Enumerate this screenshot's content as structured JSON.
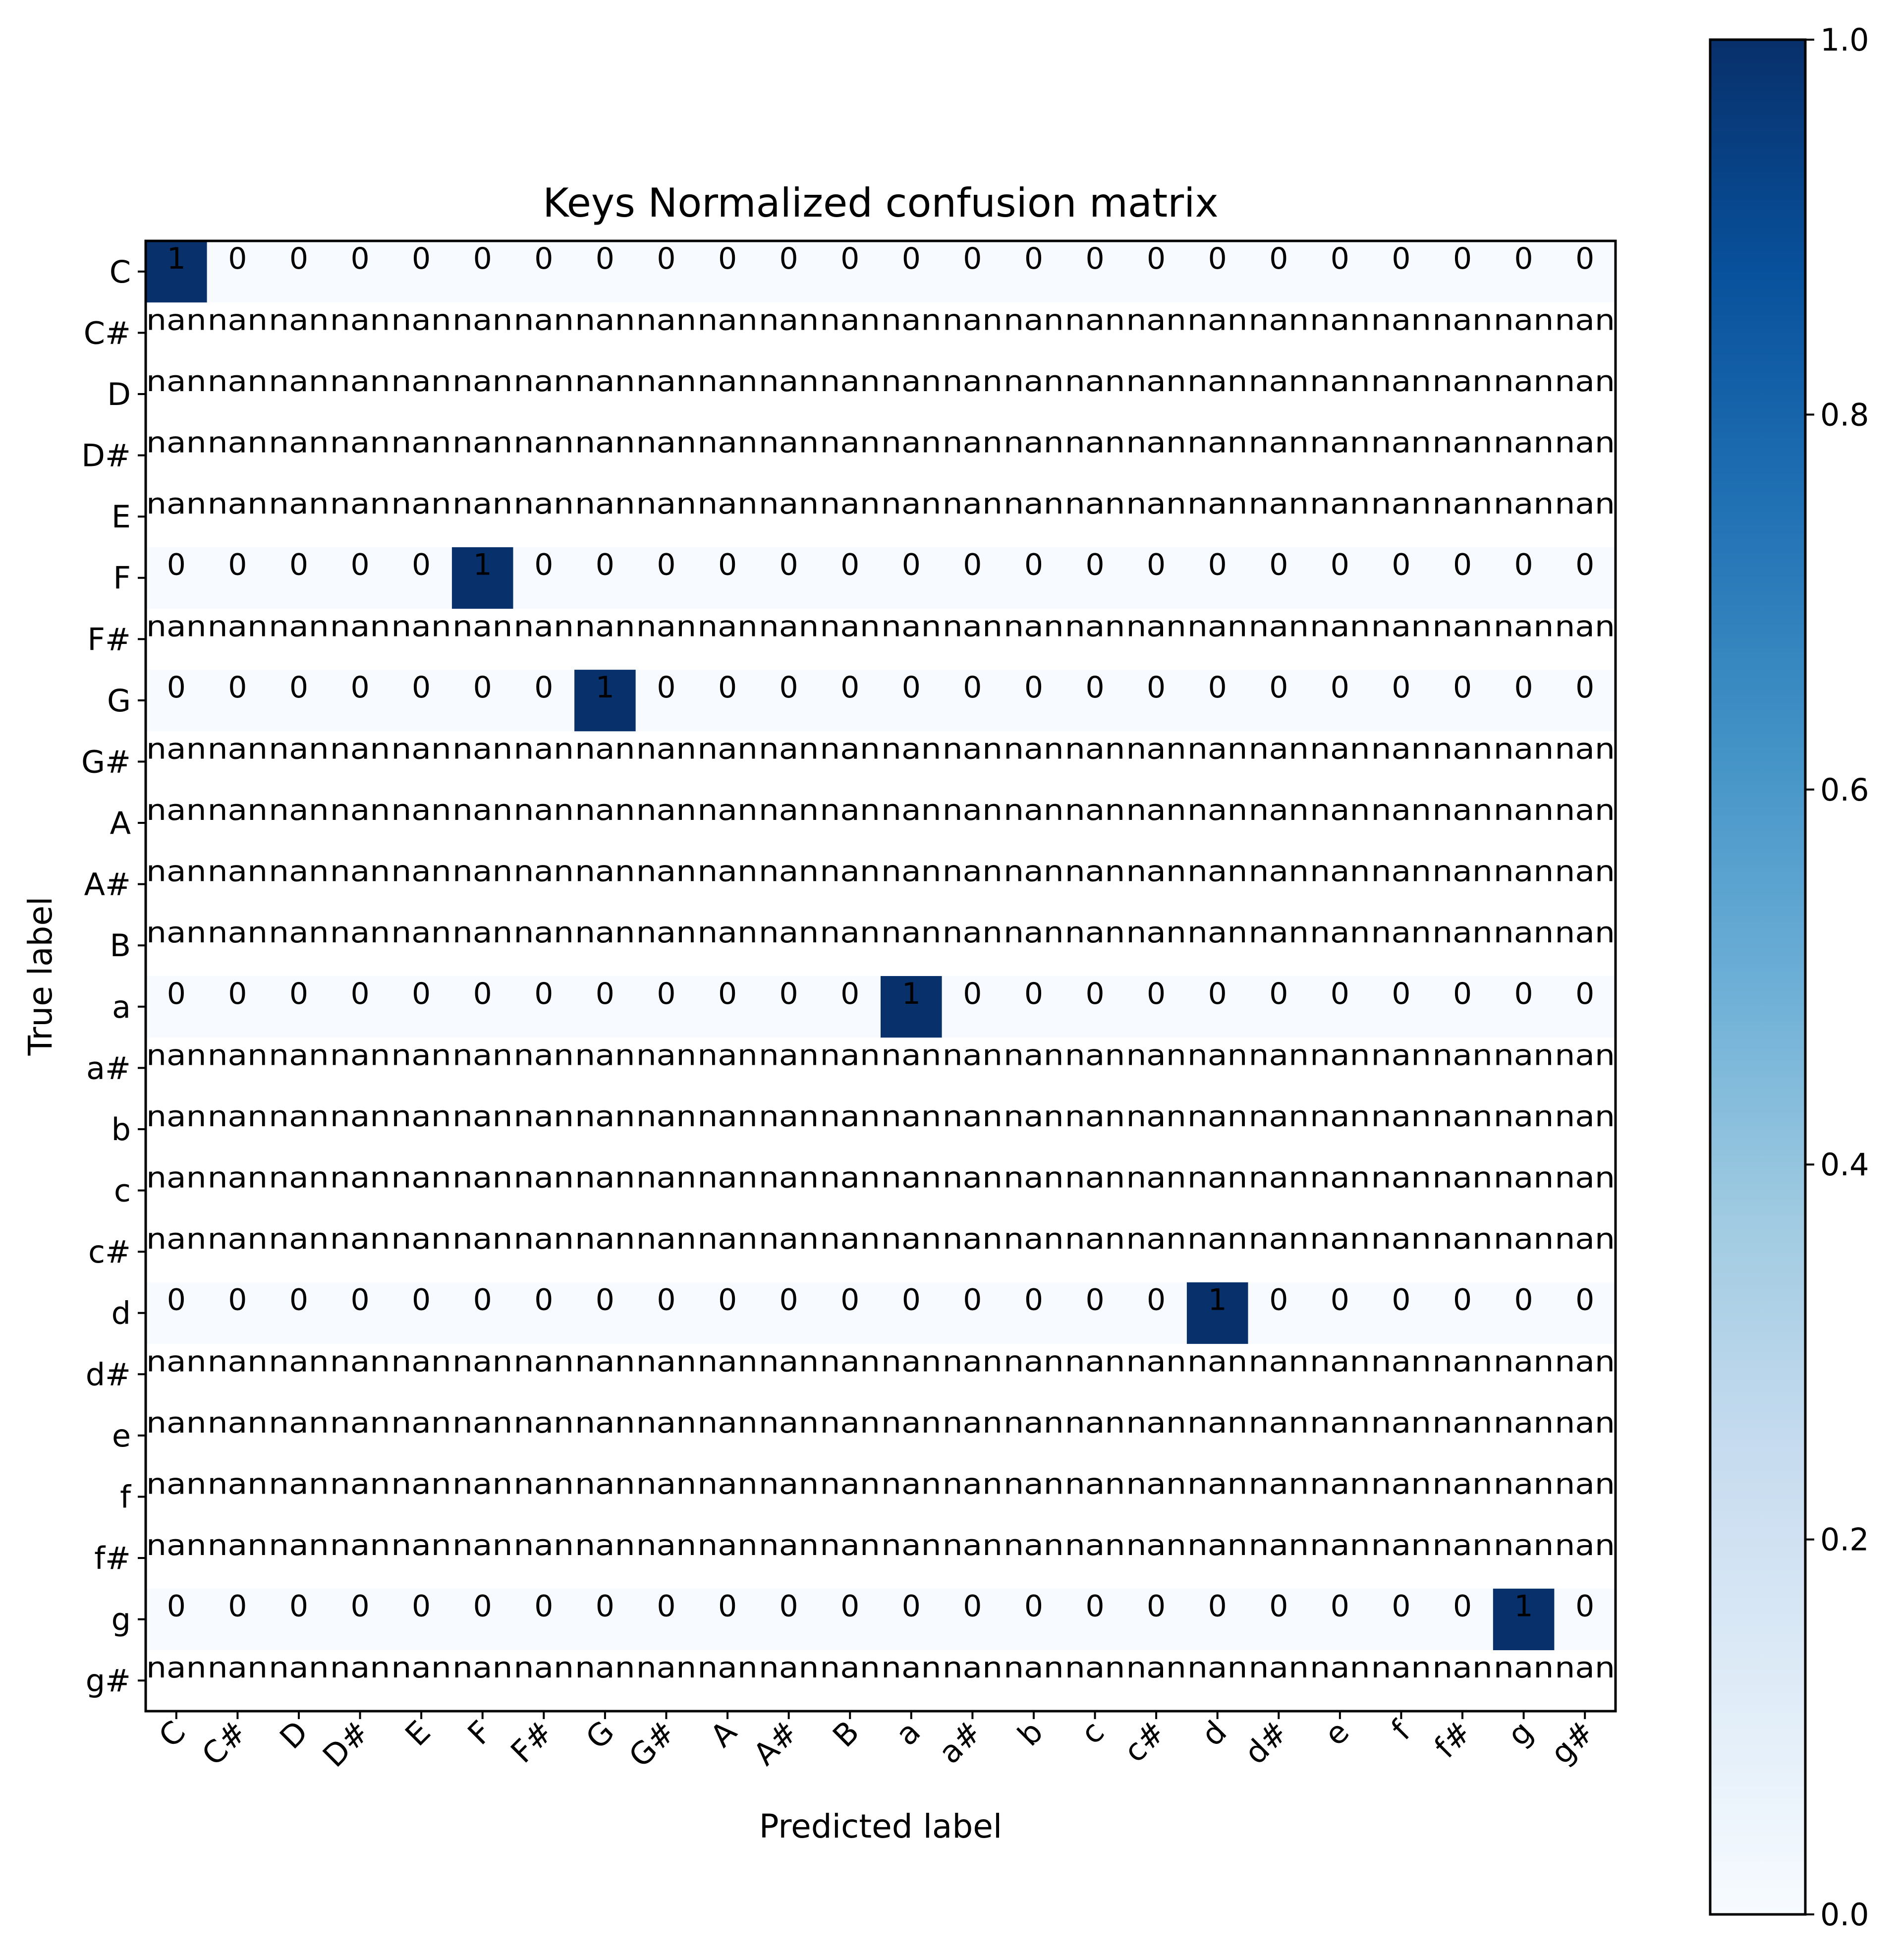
{
  "chart_data": {
    "type": "heatmap",
    "title": "Keys Normalized confusion matrix",
    "xlabel": "Predicted label",
    "ylabel": "True label",
    "row_labels": [
      "C",
      "C#",
      "D",
      "D#",
      "E",
      "F",
      "F#",
      "G",
      "G#",
      "A",
      "A#",
      "B",
      "a",
      "a#",
      "b",
      "c",
      "c#",
      "d",
      "d#",
      "e",
      "f",
      "f#",
      "g",
      "g#"
    ],
    "col_labels": [
      "C",
      "C#",
      "D",
      "D#",
      "E",
      "F",
      "F#",
      "G",
      "G#",
      "A",
      "A#",
      "B",
      "a",
      "a#",
      "b",
      "c",
      "c#",
      "d",
      "d#",
      "e",
      "f",
      "f#",
      "g",
      "g#"
    ],
    "values": [
      [
        1,
        0,
        0,
        0,
        0,
        0,
        0,
        0,
        0,
        0,
        0,
        0,
        0,
        0,
        0,
        0,
        0,
        0,
        0,
        0,
        0,
        0,
        0,
        0
      ],
      [
        "nan",
        "nan",
        "nan",
        "nan",
        "nan",
        "nan",
        "nan",
        "nan",
        "nan",
        "nan",
        "nan",
        "nan",
        "nan",
        "nan",
        "nan",
        "nan",
        "nan",
        "nan",
        "nan",
        "nan",
        "nan",
        "nan",
        "nan",
        "nan"
      ],
      [
        "nan",
        "nan",
        "nan",
        "nan",
        "nan",
        "nan",
        "nan",
        "nan",
        "nan",
        "nan",
        "nan",
        "nan",
        "nan",
        "nan",
        "nan",
        "nan",
        "nan",
        "nan",
        "nan",
        "nan",
        "nan",
        "nan",
        "nan",
        "nan"
      ],
      [
        "nan",
        "nan",
        "nan",
        "nan",
        "nan",
        "nan",
        "nan",
        "nan",
        "nan",
        "nan",
        "nan",
        "nan",
        "nan",
        "nan",
        "nan",
        "nan",
        "nan",
        "nan",
        "nan",
        "nan",
        "nan",
        "nan",
        "nan",
        "nan"
      ],
      [
        "nan",
        "nan",
        "nan",
        "nan",
        "nan",
        "nan",
        "nan",
        "nan",
        "nan",
        "nan",
        "nan",
        "nan",
        "nan",
        "nan",
        "nan",
        "nan",
        "nan",
        "nan",
        "nan",
        "nan",
        "nan",
        "nan",
        "nan",
        "nan"
      ],
      [
        0,
        0,
        0,
        0,
        0,
        1,
        0,
        0,
        0,
        0,
        0,
        0,
        0,
        0,
        0,
        0,
        0,
        0,
        0,
        0,
        0,
        0,
        0,
        0
      ],
      [
        "nan",
        "nan",
        "nan",
        "nan",
        "nan",
        "nan",
        "nan",
        "nan",
        "nan",
        "nan",
        "nan",
        "nan",
        "nan",
        "nan",
        "nan",
        "nan",
        "nan",
        "nan",
        "nan",
        "nan",
        "nan",
        "nan",
        "nan",
        "nan"
      ],
      [
        0,
        0,
        0,
        0,
        0,
        0,
        0,
        1,
        0,
        0,
        0,
        0,
        0,
        0,
        0,
        0,
        0,
        0,
        0,
        0,
        0,
        0,
        0,
        0
      ],
      [
        "nan",
        "nan",
        "nan",
        "nan",
        "nan",
        "nan",
        "nan",
        "nan",
        "nan",
        "nan",
        "nan",
        "nan",
        "nan",
        "nan",
        "nan",
        "nan",
        "nan",
        "nan",
        "nan",
        "nan",
        "nan",
        "nan",
        "nan",
        "nan"
      ],
      [
        "nan",
        "nan",
        "nan",
        "nan",
        "nan",
        "nan",
        "nan",
        "nan",
        "nan",
        "nan",
        "nan",
        "nan",
        "nan",
        "nan",
        "nan",
        "nan",
        "nan",
        "nan",
        "nan",
        "nan",
        "nan",
        "nan",
        "nan",
        "nan"
      ],
      [
        "nan",
        "nan",
        "nan",
        "nan",
        "nan",
        "nan",
        "nan",
        "nan",
        "nan",
        "nan",
        "nan",
        "nan",
        "nan",
        "nan",
        "nan",
        "nan",
        "nan",
        "nan",
        "nan",
        "nan",
        "nan",
        "nan",
        "nan",
        "nan"
      ],
      [
        "nan",
        "nan",
        "nan",
        "nan",
        "nan",
        "nan",
        "nan",
        "nan",
        "nan",
        "nan",
        "nan",
        "nan",
        "nan",
        "nan",
        "nan",
        "nan",
        "nan",
        "nan",
        "nan",
        "nan",
        "nan",
        "nan",
        "nan",
        "nan"
      ],
      [
        0,
        0,
        0,
        0,
        0,
        0,
        0,
        0,
        0,
        0,
        0,
        0,
        1,
        0,
        0,
        0,
        0,
        0,
        0,
        0,
        0,
        0,
        0,
        0
      ],
      [
        "nan",
        "nan",
        "nan",
        "nan",
        "nan",
        "nan",
        "nan",
        "nan",
        "nan",
        "nan",
        "nan",
        "nan",
        "nan",
        "nan",
        "nan",
        "nan",
        "nan",
        "nan",
        "nan",
        "nan",
        "nan",
        "nan",
        "nan",
        "nan"
      ],
      [
        "nan",
        "nan",
        "nan",
        "nan",
        "nan",
        "nan",
        "nan",
        "nan",
        "nan",
        "nan",
        "nan",
        "nan",
        "nan",
        "nan",
        "nan",
        "nan",
        "nan",
        "nan",
        "nan",
        "nan",
        "nan",
        "nan",
        "nan",
        "nan"
      ],
      [
        "nan",
        "nan",
        "nan",
        "nan",
        "nan",
        "nan",
        "nan",
        "nan",
        "nan",
        "nan",
        "nan",
        "nan",
        "nan",
        "nan",
        "nan",
        "nan",
        "nan",
        "nan",
        "nan",
        "nan",
        "nan",
        "nan",
        "nan",
        "nan"
      ],
      [
        "nan",
        "nan",
        "nan",
        "nan",
        "nan",
        "nan",
        "nan",
        "nan",
        "nan",
        "nan",
        "nan",
        "nan",
        "nan",
        "nan",
        "nan",
        "nan",
        "nan",
        "nan",
        "nan",
        "nan",
        "nan",
        "nan",
        "nan",
        "nan"
      ],
      [
        0,
        0,
        0,
        0,
        0,
        0,
        0,
        0,
        0,
        0,
        0,
        0,
        0,
        0,
        0,
        0,
        0,
        1,
        0,
        0,
        0,
        0,
        0,
        0
      ],
      [
        "nan",
        "nan",
        "nan",
        "nan",
        "nan",
        "nan",
        "nan",
        "nan",
        "nan",
        "nan",
        "nan",
        "nan",
        "nan",
        "nan",
        "nan",
        "nan",
        "nan",
        "nan",
        "nan",
        "nan",
        "nan",
        "nan",
        "nan",
        "nan"
      ],
      [
        "nan",
        "nan",
        "nan",
        "nan",
        "nan",
        "nan",
        "nan",
        "nan",
        "nan",
        "nan",
        "nan",
        "nan",
        "nan",
        "nan",
        "nan",
        "nan",
        "nan",
        "nan",
        "nan",
        "nan",
        "nan",
        "nan",
        "nan",
        "nan"
      ],
      [
        "nan",
        "nan",
        "nan",
        "nan",
        "nan",
        "nan",
        "nan",
        "nan",
        "nan",
        "nan",
        "nan",
        "nan",
        "nan",
        "nan",
        "nan",
        "nan",
        "nan",
        "nan",
        "nan",
        "nan",
        "nan",
        "nan",
        "nan",
        "nan"
      ],
      [
        "nan",
        "nan",
        "nan",
        "nan",
        "nan",
        "nan",
        "nan",
        "nan",
        "nan",
        "nan",
        "nan",
        "nan",
        "nan",
        "nan",
        "nan",
        "nan",
        "nan",
        "nan",
        "nan",
        "nan",
        "nan",
        "nan",
        "nan",
        "nan"
      ],
      [
        0,
        0,
        0,
        0,
        0,
        0,
        0,
        0,
        0,
        0,
        0,
        0,
        0,
        0,
        0,
        0,
        0,
        0,
        0,
        0,
        0,
        0,
        1,
        0
      ],
      [
        "nan",
        "nan",
        "nan",
        "nan",
        "nan",
        "nan",
        "nan",
        "nan",
        "nan",
        "nan",
        "nan",
        "nan",
        "nan",
        "nan",
        "nan",
        "nan",
        "nan",
        "nan",
        "nan",
        "nan",
        "nan",
        "nan",
        "nan",
        "nan"
      ]
    ],
    "colorbar": {
      "range": [
        0.0,
        1.0
      ],
      "ticks": [
        "0.0",
        "0.2",
        "0.4",
        "0.6",
        "0.8",
        "1.0"
      ],
      "colormap": "Blues",
      "low_color": "#f7fbff",
      "high_color": "#08306b"
    },
    "grid": false
  }
}
